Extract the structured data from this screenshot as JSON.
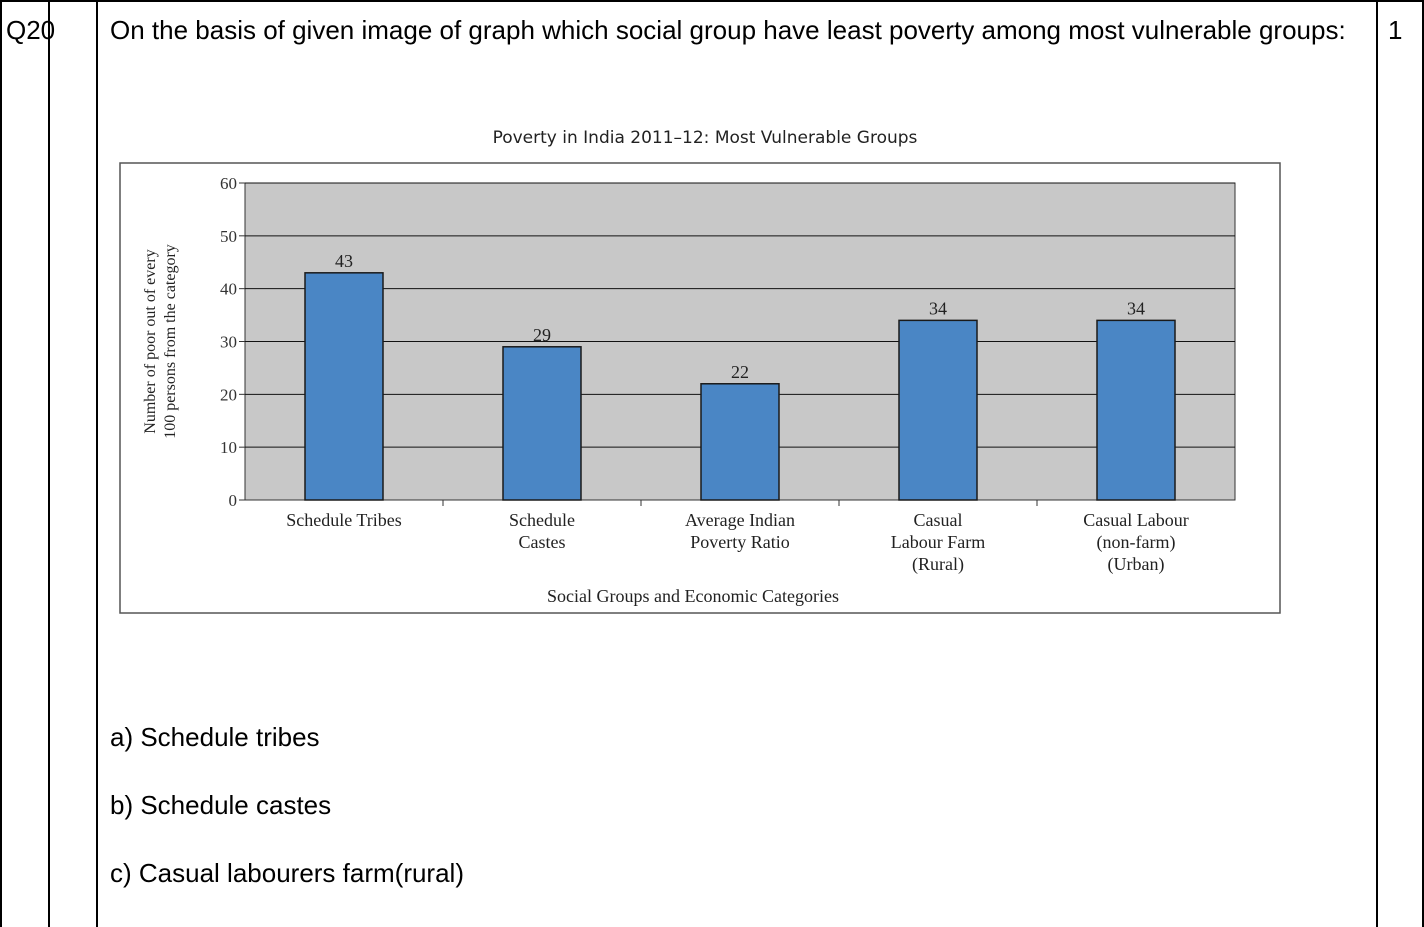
{
  "question": {
    "number": "Q20",
    "text": "On the basis of given image of graph which social group have least poverty among most vulnerable groups:",
    "marks": "1"
  },
  "options": [
    "a) Schedule tribes",
    "b) Schedule castes",
    "c) Casual labourers farm(rural)"
  ],
  "chart_data": {
    "type": "bar",
    "title": "Poverty in India 2011–12: Most Vulnerable Groups",
    "xlabel": "Social Groups and Economic Categories",
    "ylabel_lines": [
      "Number of poor out of every",
      "100 persons  from the category"
    ],
    "categories": [
      [
        "Schedule Tribes"
      ],
      [
        "Schedule",
        "Castes"
      ],
      [
        "Average Indian",
        "Poverty Ratio"
      ],
      [
        "Casual",
        "Labour Farm",
        "(Rural)"
      ],
      [
        "Casual Labour",
        "(non-farm)",
        "(Urban)"
      ]
    ],
    "values": [
      43,
      29,
      22,
      34,
      34
    ],
    "value_labels": [
      "43",
      "29",
      "22",
      "34",
      "34"
    ],
    "ylim": [
      0,
      60
    ],
    "yticks": [
      0,
      10,
      20,
      30,
      40,
      50,
      60
    ],
    "grid": true,
    "colors": {
      "bar": "#4a86c5",
      "bar_edge": "#1a1a1a",
      "plot_bg": "#c8c8c8"
    }
  }
}
